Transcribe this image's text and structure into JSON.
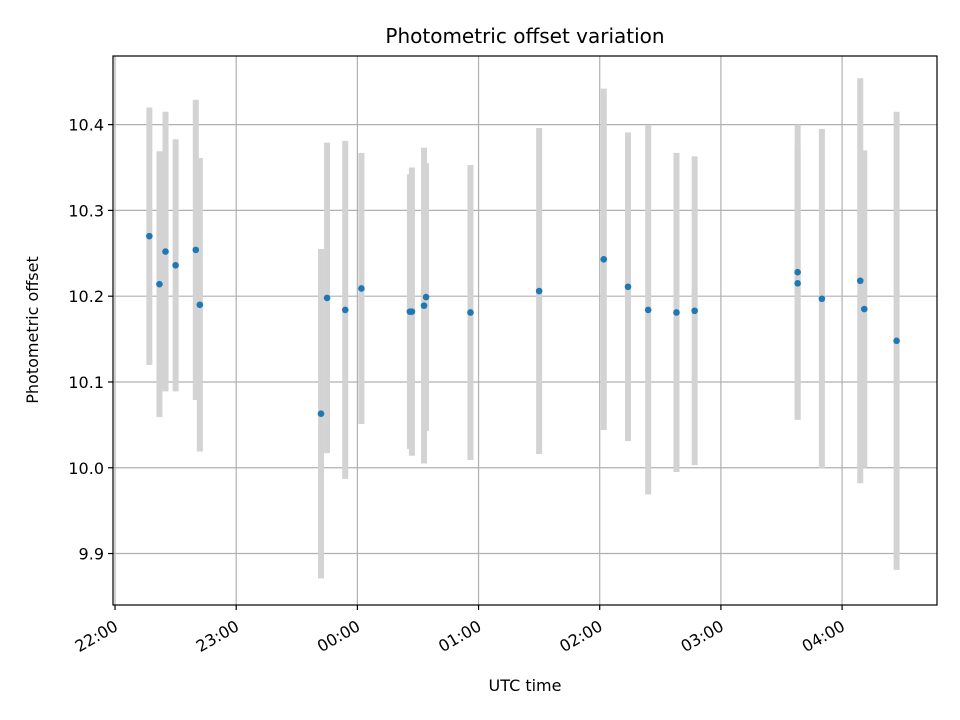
{
  "chart_data": {
    "type": "scatter",
    "title": "Photometric offset variation",
    "xlabel": "UTC time",
    "ylabel": "Photometric offset",
    "x_is_time": true,
    "xlim": [
      "21:59",
      "04:47"
    ],
    "ylim": [
      9.84,
      10.48
    ],
    "x_ticks": [
      "22:00",
      "23:00",
      "00:00",
      "01:00",
      "02:00",
      "03:00",
      "04:00"
    ],
    "y_ticks": [
      9.9,
      10.0,
      10.1,
      10.2,
      10.3,
      10.4
    ],
    "grid": true,
    "point_color": "#1f77b4",
    "errorbar_color": "#d3d3d3",
    "points": [
      {
        "t": "22:17",
        "y": 10.27,
        "lo": 10.12,
        "hi": 10.42
      },
      {
        "t": "22:22",
        "y": 10.214,
        "lo": 10.059,
        "hi": 10.369
      },
      {
        "t": "22:25",
        "y": 10.252,
        "lo": 10.089,
        "hi": 10.415
      },
      {
        "t": "22:30",
        "y": 10.236,
        "lo": 10.089,
        "hi": 10.383
      },
      {
        "t": "22:40",
        "y": 10.254,
        "lo": 10.079,
        "hi": 10.429
      },
      {
        "t": "22:42",
        "y": 10.19,
        "lo": 10.019,
        "hi": 10.361
      },
      {
        "t": "23:42",
        "y": 10.063,
        "lo": 9.871,
        "hi": 10.255
      },
      {
        "t": "23:45",
        "y": 10.198,
        "lo": 10.017,
        "hi": 10.379
      },
      {
        "t": "23:54",
        "y": 10.184,
        "lo": 9.987,
        "hi": 10.381
      },
      {
        "t": "00:02",
        "y": 10.209,
        "lo": 10.051,
        "hi": 10.367
      },
      {
        "t": "00:26",
        "y": 10.182,
        "lo": 10.022,
        "hi": 10.342
      },
      {
        "t": "00:27",
        "y": 10.182,
        "lo": 10.014,
        "hi": 10.35
      },
      {
        "t": "00:33",
        "y": 10.189,
        "lo": 10.005,
        "hi": 10.373
      },
      {
        "t": "00:34",
        "y": 10.199,
        "lo": 10.043,
        "hi": 10.355
      },
      {
        "t": "00:56",
        "y": 10.181,
        "lo": 10.009,
        "hi": 10.353
      },
      {
        "t": "01:30",
        "y": 10.206,
        "lo": 10.016,
        "hi": 10.396
      },
      {
        "t": "02:02",
        "y": 10.243,
        "lo": 10.044,
        "hi": 10.442
      },
      {
        "t": "02:14",
        "y": 10.211,
        "lo": 10.031,
        "hi": 10.391
      },
      {
        "t": "02:24",
        "y": 10.184,
        "lo": 9.969,
        "hi": 10.399
      },
      {
        "t": "02:38",
        "y": 10.181,
        "lo": 9.995,
        "hi": 10.367
      },
      {
        "t": "02:47",
        "y": 10.183,
        "lo": 10.003,
        "hi": 10.363
      },
      {
        "t": "03:38",
        "y": 10.228,
        "lo": 10.056,
        "hi": 10.4
      },
      {
        "t": "03:38",
        "y": 10.215,
        "lo": 10.056,
        "hi": 10.374
      },
      {
        "t": "03:50",
        "y": 10.197,
        "lo": 9.999,
        "hi": 10.395
      },
      {
        "t": "04:09",
        "y": 10.218,
        "lo": 9.982,
        "hi": 10.454
      },
      {
        "t": "04:11",
        "y": 10.185,
        "lo": 10.0,
        "hi": 10.37
      },
      {
        "t": "04:27",
        "y": 10.148,
        "lo": 9.881,
        "hi": 10.415
      }
    ]
  }
}
